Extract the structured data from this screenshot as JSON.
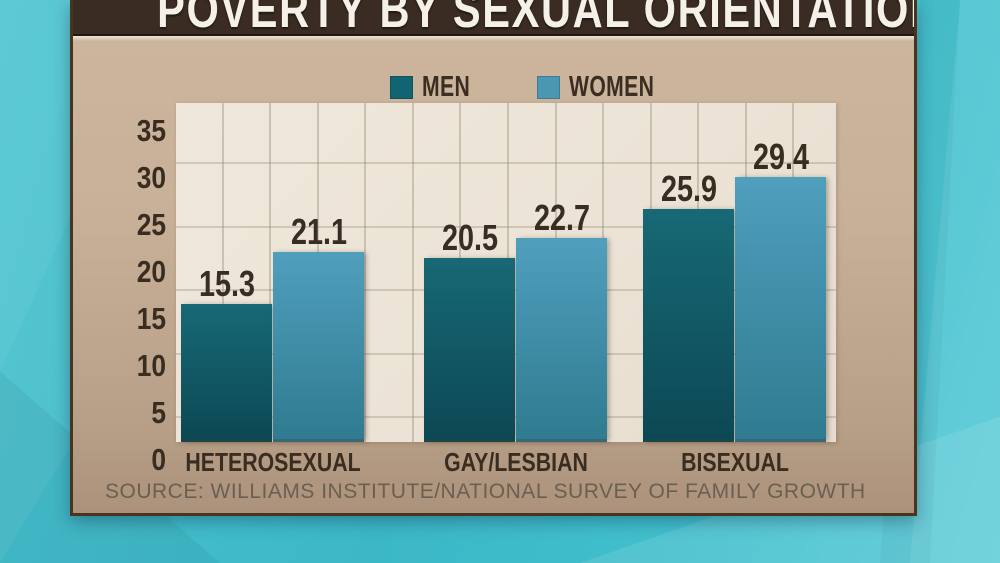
{
  "title": "POVERTY BY SEXUAL ORIENTATION",
  "source_line": "SOURCE: WILLIAMS INSTITUTE/NATIONAL SURVEY OF FAMILY GROWTH",
  "legend": {
    "items": [
      {
        "label": "MEN",
        "color": "#136472"
      },
      {
        "label": "WOMEN",
        "color": "#4b97b3"
      }
    ]
  },
  "chart_data": {
    "type": "bar",
    "title": "POVERTY BY SEXUAL ORIENTATION",
    "categories": [
      "HETEROSEXUAL",
      "GAY/LESBIAN",
      "BISEXUAL"
    ],
    "series": [
      {
        "name": "MEN",
        "color_top": "#176975",
        "color": "#0c4854",
        "values": [
          15.3,
          20.5,
          25.9
        ]
      },
      {
        "name": "WOMEN",
        "color_top": "#4f9fbd",
        "color": "#2f7b90",
        "values": [
          21.1,
          22.7,
          29.4
        ]
      }
    ],
    "ylabel": "",
    "yticks": [
      0,
      5,
      10,
      15,
      20,
      25,
      30,
      35
    ],
    "ylim": [
      0,
      37.5
    ],
    "grid": true,
    "legend_position": "top",
    "value_label_decimals": 1
  },
  "colors": {
    "background_teal": "#3fbccb",
    "card_tan": "#c5ae95",
    "card_border": "#4a3420",
    "title_bar": "#3a2c22",
    "title_text": "#f5f1e8",
    "plot_background": "#ece3d6",
    "gridline": "#90857a",
    "men_bar": "#0c4854",
    "women_bar": "#2f7b90",
    "label_text": "#392d21",
    "source_text": "#6a5f51"
  }
}
